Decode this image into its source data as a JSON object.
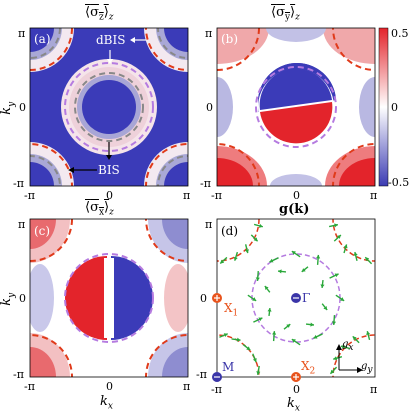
{
  "panels": {
    "a": {
      "label": "(a)",
      "title_base": "σ",
      "title_sub": "z",
      "title_suffix": "z",
      "annotations": {
        "dbis": "dBIS",
        "bis": "BIS"
      }
    },
    "b": {
      "label": "(b)",
      "title_base": "σ",
      "title_sub": "y",
      "title_suffix": "z"
    },
    "c": {
      "label": "(c)",
      "title_base": "σ",
      "title_sub": "x",
      "title_suffix": "z"
    },
    "d": {
      "label": "(d)",
      "title": "g(k)",
      "points": {
        "x1": "X",
        "x1_sub": "1",
        "x2": "X",
        "x2_sub": "2",
        "gamma": "Γ",
        "m": "M"
      },
      "axes_inset": {
        "gx": "g",
        "gx_sub": "x",
        "gy": "g",
        "gy_sub": "y"
      }
    }
  },
  "axes": {
    "ky_label": "k",
    "ky_sub": "y",
    "kx_label": "k",
    "kx_sub": "x",
    "ticks": {
      "neg_pi": "-π",
      "zero": "0",
      "pi": "π"
    }
  },
  "colorbar": {
    "max": "0.5",
    "zero": "0",
    "min": "-0.5",
    "colors": {
      "high": "#e3242b",
      "mid": "#ffffff",
      "low": "#3b3bb3"
    }
  },
  "colors": {
    "bis_line": "#e03a1a",
    "dbis_line": "#b57be0",
    "gray_line": "#888888",
    "arrow": "#2aa83a",
    "marker_red": "#e8531c",
    "marker_blue": "#3a35a8",
    "dark_blue": "#3b3bb8"
  }
}
